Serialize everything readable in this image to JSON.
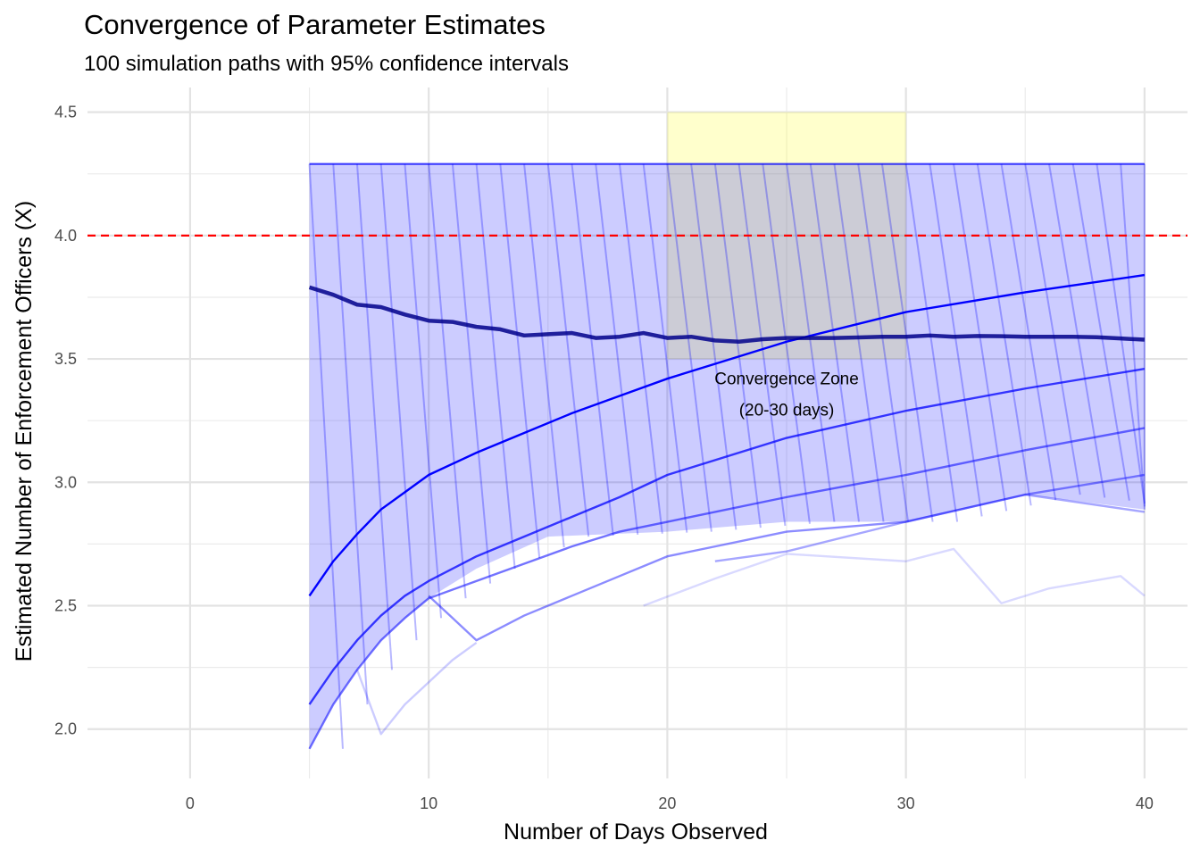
{
  "chart_data": {
    "type": "line",
    "title": "Convergence of Parameter Estimates",
    "subtitle": "100 simulation paths with 95% confidence intervals",
    "xlabel": "Number of Days Observed",
    "ylabel": "Estimated Number of Enforcement Officers (X)",
    "xlim": [
      -4.3,
      41.8
    ],
    "ylim": [
      1.8,
      4.6
    ],
    "x_ticks": [
      0,
      10,
      20,
      30,
      40
    ],
    "x_tick_labels": [
      "0",
      "10",
      "20",
      "30",
      "40"
    ],
    "y_ticks": [
      2.0,
      2.5,
      3.0,
      3.5,
      4.0,
      4.5
    ],
    "y_tick_labels": [
      "2.0",
      "2.5",
      "3.0",
      "3.5",
      "4.0",
      "4.5"
    ],
    "grid": true,
    "reference_line": {
      "y": 4.0,
      "color": "#ff0000",
      "style": "dashed"
    },
    "highlight_zone": {
      "x": [
        20,
        30
      ],
      "y": [
        3.5,
        4.5
      ],
      "color": "#ffff00",
      "opacity": 0.2
    },
    "annotation": {
      "text_lines": [
        "Convergence Zone",
        "(20-30 days)"
      ],
      "x": 25,
      "y": 3.3
    },
    "ci_band": {
      "color": "#0000ff",
      "opacity": 0.2,
      "x": [
        5,
        6,
        7,
        8,
        9,
        10,
        12,
        15,
        20,
        25,
        30,
        35,
        40
      ],
      "upper": [
        4.29,
        4.29,
        4.29,
        4.29,
        4.29,
        4.29,
        4.29,
        4.29,
        4.29,
        4.29,
        4.29,
        4.29,
        4.29
      ],
      "lower": [
        1.92,
        2.1,
        2.24,
        2.36,
        2.45,
        2.53,
        2.65,
        2.78,
        2.8,
        2.84,
        2.84,
        2.95,
        2.89
      ]
    },
    "series": [
      {
        "role": "mean_estimate",
        "color": "#00008b",
        "x": [
          5,
          6,
          7,
          8,
          9,
          10,
          11,
          12,
          13,
          14,
          15,
          16,
          17,
          18,
          19,
          20,
          21,
          22,
          23,
          24,
          25,
          26,
          27,
          28,
          29,
          30,
          31,
          32,
          33,
          34,
          35,
          36,
          37,
          38,
          39,
          40
        ],
        "values": [
          3.79,
          3.76,
          3.72,
          3.71,
          3.68,
          3.655,
          3.65,
          3.63,
          3.62,
          3.595,
          3.6,
          3.605,
          3.585,
          3.59,
          3.605,
          3.585,
          3.59,
          3.575,
          3.57,
          3.58,
          3.585,
          3.585,
          3.585,
          3.587,
          3.59,
          3.59,
          3.595,
          3.59,
          3.593,
          3.592,
          3.59,
          3.59,
          3.59,
          3.588,
          3.583,
          3.578
        ]
      },
      {
        "role": "sample_path",
        "color": "#0000ff",
        "x": [
          5,
          6,
          7,
          8,
          9,
          10,
          12,
          14,
          16,
          18,
          20,
          25,
          30,
          35,
          40
        ],
        "values": [
          2.54,
          2.68,
          2.79,
          2.89,
          2.96,
          3.03,
          3.12,
          3.2,
          3.28,
          3.35,
          3.42,
          3.57,
          3.69,
          3.77,
          3.84
        ]
      },
      {
        "role": "sample_path",
        "color": "#0000ff",
        "x": [
          5,
          6,
          7,
          8,
          9,
          10,
          12,
          14,
          16,
          18,
          20,
          25,
          30,
          35,
          40
        ],
        "values": [
          2.1,
          2.24,
          2.36,
          2.46,
          2.54,
          2.6,
          2.7,
          2.78,
          2.86,
          2.94,
          3.03,
          3.18,
          3.29,
          3.38,
          3.46
        ]
      },
      {
        "role": "sample_path",
        "color": "#0000ff",
        "x": [
          5,
          6,
          7,
          8,
          9,
          10,
          12,
          14,
          16,
          18,
          20,
          25,
          30,
          35,
          40
        ],
        "values": [
          1.92,
          2.1,
          2.24,
          2.36,
          2.45,
          2.53,
          2.6,
          2.67,
          2.74,
          2.8,
          2.84,
          2.94,
          3.03,
          3.13,
          3.22
        ]
      },
      {
        "role": "sample_path",
        "color": "#0000ff",
        "x": [
          10,
          12,
          14,
          16,
          18,
          20,
          25,
          30,
          35,
          40
        ],
        "values": [
          2.54,
          2.36,
          2.46,
          2.54,
          2.62,
          2.7,
          2.8,
          2.84,
          2.95,
          3.03
        ]
      },
      {
        "role": "sample_path",
        "color": "#0000ff",
        "x": [
          22,
          25,
          30,
          35,
          40
        ],
        "values": [
          2.68,
          2.72,
          2.84,
          2.95,
          2.88
        ]
      },
      {
        "role": "sample_path",
        "color": "#0000ff",
        "x": [
          7,
          8,
          9,
          10,
          11,
          12
        ],
        "values": [
          2.24,
          1.98,
          2.1,
          2.19,
          2.28,
          2.35
        ]
      },
      {
        "role": "sample_path",
        "color": "#0000ff",
        "x": [
          19,
          22,
          25,
          30,
          32,
          34,
          36,
          39,
          40
        ],
        "values": [
          2.5,
          2.61,
          2.71,
          2.68,
          2.73,
          2.51,
          2.57,
          2.62,
          2.54
        ]
      }
    ]
  }
}
